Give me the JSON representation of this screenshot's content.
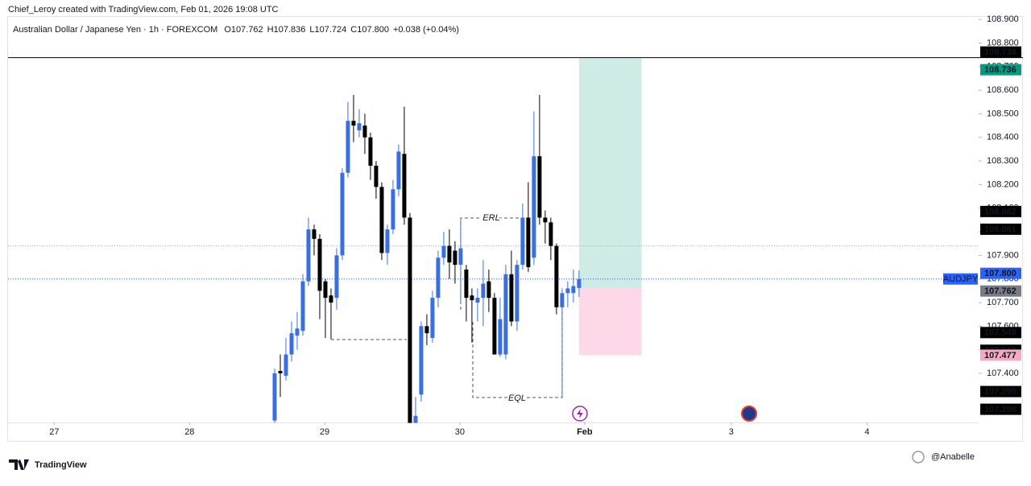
{
  "header": {
    "credit": "Chief_Leroy created with TradingView.com, Feb 01, 2026 19:08 UTC",
    "instrument": "Australian Dollar / Japanese Yen · 1h · FOREXCOM",
    "ohlc": [
      {
        "letter": "O",
        "value": "107.762"
      },
      {
        "letter": "H",
        "value": "107.836"
      },
      {
        "letter": "L",
        "value": "107.724"
      },
      {
        "letter": "C",
        "value": "107.800"
      }
    ],
    "change": "+0.038 (+0.04%)"
  },
  "chart_data": {
    "type": "candlestick",
    "up_color": "#3a6fe0",
    "down_color": "#000000",
    "open": [
      107.2,
      107.41,
      107.39,
      107.48,
      107.56,
      107.58,
      107.79,
      108.01,
      107.97,
      107.79,
      107.73,
      107.72,
      107.9,
      108.25,
      108.47,
      108.43,
      108.45,
      108.4,
      108.28,
      108.19,
      107.91,
      108.01,
      108.18,
      108.33,
      108.06,
      107.19,
      107.31,
      107.6,
      107.55,
      107.72,
      107.89,
      107.94,
      107.92,
      107.86,
      107.84,
      107.73,
      107.7,
      107.72,
      107.79,
      107.72,
      107.48,
      107.48,
      107.82,
      107.62,
      107.86,
      108.06,
      107.89,
      108.32,
      108.06,
      108.04,
      107.94,
      107.68,
      107.74,
      107.74,
      107.762
    ],
    "high": [
      107.42,
      107.48,
      107.55,
      107.62,
      107.66,
      107.82,
      108.06,
      108.03,
      107.99,
      107.8,
      107.76,
      107.93,
      108.27,
      108.55,
      108.58,
      108.52,
      108.5,
      108.42,
      108.3,
      108.21,
      108.03,
      108.22,
      108.37,
      108.53,
      108.08,
      107.3,
      107.62,
      107.65,
      107.75,
      107.92,
      108.0,
      108.01,
      107.96,
      108.06,
      107.86,
      107.76,
      107.76,
      107.88,
      107.84,
      107.74,
      107.72,
      107.86,
      107.92,
      107.88,
      108.12,
      108.21,
      108.51,
      108.58,
      108.09,
      108.06,
      107.95,
      107.76,
      107.79,
      107.84,
      107.836
    ],
    "low": [
      107.19,
      107.3,
      107.37,
      107.45,
      107.5,
      107.56,
      107.77,
      107.9,
      107.63,
      107.55,
      107.545,
      107.67,
      107.88,
      108.23,
      108.38,
      108.4,
      108.33,
      108.22,
      108.14,
      107.88,
      107.86,
      107.99,
      108.15,
      108.03,
      107.19,
      107.19,
      107.28,
      107.52,
      107.53,
      107.68,
      107.86,
      107.8,
      107.78,
      107.7,
      107.62,
      107.53,
      107.62,
      107.6,
      107.66,
      107.48,
      107.47,
      107.46,
      107.6,
      107.58,
      107.84,
      107.83,
      107.86,
      108.03,
      107.95,
      107.88,
      107.65,
      107.3,
      107.68,
      107.7,
      107.724
    ],
    "close": [
      107.4,
      107.4,
      107.48,
      107.57,
      107.59,
      107.79,
      108.01,
      107.97,
      107.75,
      107.72,
      107.7,
      107.9,
      108.25,
      108.47,
      108.45,
      108.46,
      108.4,
      108.28,
      108.19,
      107.91,
      108.01,
      108.18,
      108.34,
      108.06,
      107.19,
      107.22,
      107.6,
      107.57,
      107.72,
      107.89,
      107.94,
      107.87,
      107.86,
      107.93,
      107.72,
      107.71,
      107.72,
      107.78,
      107.72,
      107.48,
      107.63,
      107.82,
      107.62,
      107.86,
      108.06,
      107.85,
      108.32,
      108.06,
      108.04,
      107.94,
      107.68,
      107.74,
      107.76,
      107.77,
      107.8
    ],
    "xlim": [
      -47.3,
      124.9
    ],
    "xticks": [
      {
        "value": -39.1,
        "label": "27"
      },
      {
        "value": -15.1,
        "label": "28"
      },
      {
        "value": 8.86,
        "label": "29"
      },
      {
        "value": 32.86,
        "label": "30"
      },
      {
        "value": 55,
        "label": "Feb"
      },
      {
        "value": 81,
        "label": "3"
      },
      {
        "value": 105.1,
        "label": "4"
      }
    ],
    "ylim": [
      107.192,
      108.914
    ],
    "yticks": [
      {
        "value": 107.4,
        "label": "107.400"
      },
      {
        "value": 107.5,
        "label": "107.500"
      },
      {
        "value": 107.6,
        "label": "107.600"
      },
      {
        "value": 107.7,
        "label": "107.700"
      },
      {
        "value": 107.8,
        "label": "107.800"
      },
      {
        "value": 107.9,
        "label": "107.900"
      },
      {
        "value": 108.0,
        "label": "108.000"
      },
      {
        "value": 108.1,
        "label": "108.100"
      },
      {
        "value": 108.2,
        "label": "108.200"
      },
      {
        "value": 108.3,
        "label": "108.300"
      },
      {
        "value": 108.4,
        "label": "108.400"
      },
      {
        "value": 108.5,
        "label": "108.500"
      },
      {
        "value": 108.6,
        "label": "108.600"
      },
      {
        "value": 108.7,
        "label": "108.700"
      },
      {
        "value": 108.8,
        "label": "108.800"
      },
      {
        "value": 108.9,
        "label": "108.900"
      }
    ],
    "price_tags": [
      {
        "value": 108.738,
        "label": "108.738",
        "color": "#000000"
      },
      {
        "value": 108.736,
        "label": "108.736",
        "color": "#089981"
      },
      {
        "value": 108.062,
        "label": "108.062",
        "color": "#000000"
      },
      {
        "value": 108.061,
        "label": "108.061",
        "color": "#000000"
      },
      {
        "value": 107.8,
        "label": "107.800",
        "color": "#2962ff"
      },
      {
        "value": 107.762,
        "label": "107.762",
        "color": "#787b86"
      },
      {
        "value": 107.549,
        "label": "107.549",
        "color": "#000000"
      },
      {
        "value": 107.548,
        "label": "107.548",
        "color": "#000000"
      },
      {
        "value": 107.477,
        "label": "107.477",
        "color": "#f7a9c4"
      },
      {
        "value": 107.299,
        "label": "107.299",
        "color": "#000000"
      },
      {
        "value": 107.298,
        "label": "107.298",
        "color": "#000000"
      }
    ],
    "symbol_tag": "AUDJPY",
    "lines": [
      {
        "value": 108.738,
        "style": "solid",
        "color": "#000000"
      },
      {
        "value": 107.94,
        "style": "dotted",
        "color": "#9aa3b5"
      },
      {
        "value": 107.8,
        "style": "dotted",
        "color": "#2962ff"
      }
    ],
    "position": {
      "target": 108.736,
      "entry": 107.762,
      "stop": 107.477
    },
    "annotations": [
      "ERL",
      "EQL"
    ]
  },
  "footer": {
    "logo": "TradingView",
    "watermark": "@Anabelle"
  }
}
